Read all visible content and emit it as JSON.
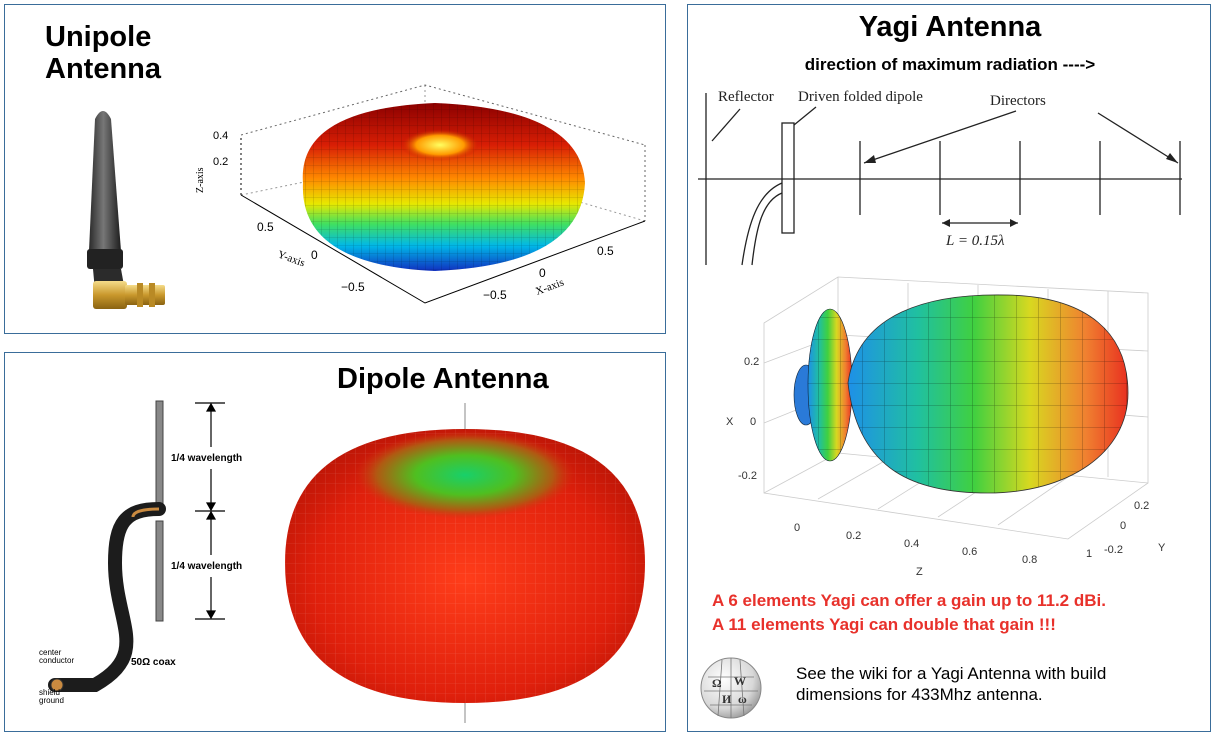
{
  "unipole": {
    "title_line1": "Unipole",
    "title_line2": "Antenna",
    "plot": {
      "z_axis_label": "Z-axis",
      "y_axis_label": "Y-axis",
      "x_axis_label": "X-axis",
      "z_ticks": [
        "0.4",
        "0.2"
      ],
      "y_ticks": [
        "0.5",
        "0",
        "−0.5"
      ],
      "x_ticks": [
        "0.5",
        "0",
        "−0.5"
      ]
    }
  },
  "dipole": {
    "title": "Dipole Antenna",
    "upper_label": "1/4 wavelength",
    "lower_label": "1/4 wavelength",
    "coax_label": "50Ω coax",
    "center_label_1": "center",
    "center_label_2": "conductor",
    "shield_label_1": "shield",
    "shield_label_2": "ground"
  },
  "yagi": {
    "title": "Yagi Antenna",
    "direction": "direction of maximum radiation ---->",
    "diagram": {
      "reflector": "Reflector",
      "driven": "Driven folded dipole",
      "directors": "Directors",
      "spacing": "L = 0.15λ"
    },
    "plot": {
      "x_label": "X",
      "x_ticks": [
        "0.2",
        "0",
        "-0.2"
      ],
      "z_label": "Z",
      "z_ticks": [
        "0",
        "0.2",
        "0.4",
        "0.6",
        "0.8",
        "1"
      ],
      "y_label": "Y",
      "y_ticks": [
        "0.2",
        "0",
        "-0.2"
      ]
    },
    "gain_line1": "A 6 elements Yagi can offer a gain up to 11.2 dBi.",
    "gain_line2": "A 11 elements Yagi can double that gain !!!",
    "wiki_line1": "See the wiki for a Yagi Antenna with build",
    "wiki_line2": "dimensions for 433Mhz antenna.",
    "wiki_logo_icon": "wikipedia-globe-icon"
  },
  "colors": {
    "panel_border": "#3a6d9a",
    "gain_text": "#e8312b"
  }
}
